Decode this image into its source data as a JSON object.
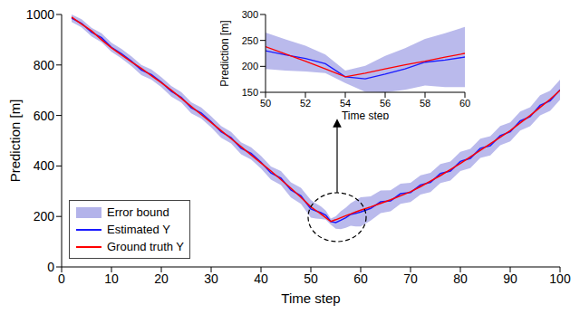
{
  "chart_data": [
    {
      "type": "line",
      "xlabel": "Time step",
      "ylabel": "Prediction [m]",
      "xlim": [
        0,
        100
      ],
      "xticks": [
        0,
        10,
        20,
        30,
        40,
        50,
        60,
        70,
        80,
        90,
        100
      ],
      "ylim": [
        0,
        1000
      ],
      "yticks": [
        0,
        200,
        400,
        600,
        800,
        1000
      ],
      "grid": false,
      "legend": "lower left",
      "x": [
        2,
        4,
        6,
        8,
        10,
        12,
        14,
        16,
        18,
        20,
        22,
        24,
        26,
        28,
        30,
        32,
        34,
        36,
        38,
        40,
        42,
        44,
        46,
        48,
        50,
        51,
        52,
        53,
        54,
        55,
        56,
        57,
        58,
        59,
        60,
        62,
        64,
        66,
        68,
        70,
        72,
        74,
        76,
        78,
        80,
        82,
        84,
        86,
        88,
        90,
        92,
        94,
        96,
        98,
        100
      ],
      "series": [
        {
          "name": "Error bound",
          "type": "area",
          "color": "#b3b3ea",
          "values": [
            [
              970,
              1000
            ],
            [
              949,
              981
            ],
            [
              913,
              947
            ],
            [
              890,
              926
            ],
            [
              852,
              888
            ],
            [
              826,
              864
            ],
            [
              796,
              834
            ],
            [
              760,
              800
            ],
            [
              742,
              782
            ],
            [
              712,
              752
            ],
            [
              675,
              717
            ],
            [
              651,
              693
            ],
            [
              608,
              652
            ],
            [
              588,
              632
            ],
            [
              553,
              597
            ],
            [
              512,
              558
            ],
            [
              489,
              535
            ],
            [
              446,
              494
            ],
            [
              426,
              474
            ],
            [
              390,
              440
            ],
            [
              346,
              398
            ],
            [
              324,
              380
            ],
            [
              275,
              335
            ],
            [
              250,
              314
            ],
            [
              195,
              265
            ],
            [
              192,
              252
            ],
            [
              190,
              240
            ],
            [
              187,
              223
            ],
            [
              168,
              192
            ],
            [
              151,
              201
            ],
            [
              150,
              220
            ],
            [
              155,
              235
            ],
            [
              163,
              253
            ],
            [
              160,
              264
            ],
            [
              160,
              276
            ],
            [
              184,
              280
            ],
            [
              213,
              303
            ],
            [
              220,
              304
            ],
            [
              250,
              330
            ],
            [
              257,
              333
            ],
            [
              287,
              363
            ],
            [
              297,
              373
            ],
            [
              332,
              408
            ],
            [
              342,
              418
            ],
            [
              380,
              456
            ],
            [
              392,
              468
            ],
            [
              432,
              508
            ],
            [
              442,
              518
            ],
            [
              482,
              558
            ],
            [
              497,
              573
            ],
            [
              540,
              616
            ],
            [
              557,
              633
            ],
            [
              600,
              680
            ],
            [
              618,
              698
            ],
            [
              662,
              742
            ]
          ]
        },
        {
          "name": "Estimated Y",
          "type": "line",
          "color": "#1a1aff",
          "values": [
            985,
            965,
            930,
            908,
            870,
            845,
            815,
            780,
            762,
            732,
            696,
            672,
            630,
            610,
            575,
            535,
            512,
            470,
            450,
            415,
            372,
            352,
            305,
            282,
            230,
            222,
            215,
            205,
            180,
            176,
            185,
            195,
            208,
            212,
            218,
            232,
            258,
            262,
            290,
            295,
            325,
            335,
            370,
            380,
            418,
            430,
            470,
            480,
            520,
            535,
            578,
            595,
            640,
            658,
            702
          ]
        },
        {
          "name": "Ground truth Y",
          "type": "line",
          "color": "#ff0000",
          "values": [
            990,
            962,
            935,
            900,
            868,
            840,
            812,
            786,
            758,
            730,
            700,
            668,
            636,
            604,
            572,
            540,
            508,
            476,
            444,
            412,
            380,
            346,
            312,
            276,
            238,
            224,
            210,
            195,
            180,
            187,
            195,
            203,
            210,
            218,
            225,
            238,
            252,
            266,
            282,
            298,
            318,
            340,
            362,
            386,
            410,
            436,
            462,
            488,
            514,
            540,
            570,
            600,
            632,
            664,
            700
          ]
        }
      ]
    },
    {
      "type": "line",
      "xlabel": "Time step",
      "ylabel": "Prediction [m]",
      "xlim": [
        50,
        60
      ],
      "xticks": [
        50,
        52,
        54,
        56,
        58,
        60
      ],
      "ylim": [
        150,
        300
      ],
      "yticks": [
        150,
        200,
        250,
        300
      ],
      "grid": false,
      "x": [
        50,
        51,
        52,
        53,
        54,
        55,
        56,
        57,
        58,
        59,
        60
      ],
      "series": [
        {
          "name": "Error bound",
          "type": "area",
          "color": "#b3b3ea",
          "values": [
            [
              195,
              265
            ],
            [
              192,
              252
            ],
            [
              190,
              240
            ],
            [
              187,
              223
            ],
            [
              168,
              192
            ],
            [
              151,
              201
            ],
            [
              150,
              220
            ],
            [
              155,
              235
            ],
            [
              163,
              253
            ],
            [
              160,
              264
            ],
            [
              160,
              276
            ]
          ]
        },
        {
          "name": "Estimated Y",
          "type": "line",
          "color": "#1a1aff",
          "values": [
            230,
            222,
            215,
            205,
            180,
            176,
            185,
            195,
            208,
            212,
            218
          ]
        },
        {
          "name": "Ground truth Y",
          "type": "line",
          "color": "#ff0000",
          "values": [
            238,
            224,
            210,
            195,
            180,
            187,
            195,
            203,
            210,
            218,
            225
          ]
        }
      ]
    }
  ]
}
